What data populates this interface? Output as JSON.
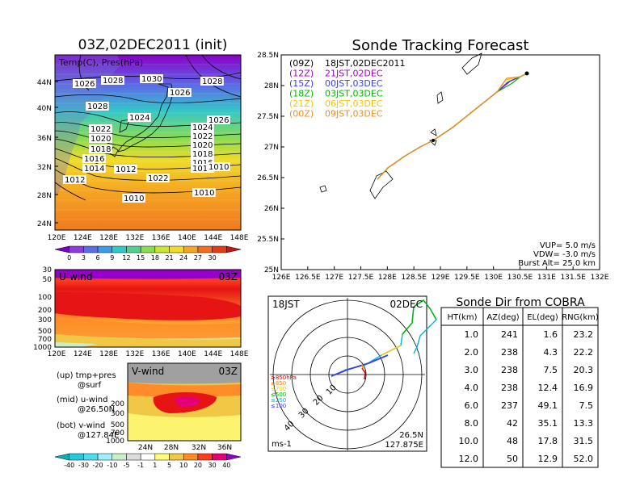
{
  "left_map": {
    "title": "03Z,02DEC2011 (init)",
    "overlay": "Temp(C), Pres(hPa)",
    "lat_ticks": [
      "44N",
      "40N",
      "36N",
      "32N",
      "28N",
      "24N"
    ],
    "lon_ticks": [
      "120E",
      "124E",
      "128E",
      "132E",
      "136E",
      "140E",
      "144E",
      "148E"
    ],
    "isobars": [
      "1026",
      "1028",
      "1030",
      "1028",
      "1026",
      "1028",
      "1024",
      "1026",
      "1022",
      "1020",
      "1018",
      "1016",
      "1014",
      "1012",
      "1024",
      "1022",
      "1020",
      "1018",
      "1016",
      "1014",
      "1012",
      "1022",
      "1010",
      "1010",
      "1010"
    ],
    "colorbar_labels": [
      "0",
      "3",
      "6",
      "9",
      "12",
      "15",
      "18",
      "21",
      "24",
      "27",
      "30"
    ],
    "colorbar_colors": [
      "#7a00c8",
      "#8c3cdc",
      "#5a6ee6",
      "#3c9be6",
      "#32c8c8",
      "#50d28c",
      "#8cdc50",
      "#c8e632",
      "#f0dc28",
      "#f5a523",
      "#f06e1e",
      "#e63c14",
      "#c81414"
    ]
  },
  "uwind": {
    "label": "U-wind",
    "time": "03Z",
    "y_ticks": [
      "30",
      "50",
      "100",
      "200",
      "300",
      "500",
      "700",
      "1000"
    ],
    "x_ticks": [
      "120E",
      "124E",
      "128E",
      "132E",
      "136E",
      "140E",
      "144E",
      "148E"
    ]
  },
  "vwind": {
    "label": "V-wind",
    "time": "03Z",
    "y_ticks": [
      "200",
      "300",
      "500",
      "700",
      "1000"
    ],
    "x_ticks": [
      "24N",
      "28N",
      "32N",
      "36N"
    ]
  },
  "legend_notes": [
    {
      "line1": "(up) tmp+pres",
      "line2": "@surf"
    },
    {
      "line1": "(mid) u-wind",
      "line2": "@26.50N"
    },
    {
      "line1": "(bot) v-wind",
      "line2": "@127.84E"
    }
  ],
  "wind_colorbar": {
    "labels": [
      "-40",
      "-30",
      "-20",
      "-10",
      "-5",
      "-1",
      "1",
      "5",
      "10",
      "20",
      "30",
      "40"
    ],
    "colors": [
      "#00b4b4",
      "#28c8dc",
      "#50dcf0",
      "#a0f0ff",
      "#c8f0c8",
      "#dcdcdc",
      "#ffffff",
      "#ffff78",
      "#f0c846",
      "#ff8c28",
      "#ff3c1e",
      "#e60078",
      "#9600c8"
    ]
  },
  "track_map": {
    "title": "Sonde Tracking Forecast",
    "lat_ticks": [
      "28.5N",
      "28N",
      "27.5N",
      "27N",
      "26.5N",
      "26N",
      "25.5N",
      "25N"
    ],
    "lon_ticks": [
      "126E",
      "126.5E",
      "127E",
      "127.5E",
      "128E",
      "128.5E",
      "129E",
      "129.5E",
      "130E",
      "130.5E",
      "131E",
      "131.5E",
      "132E"
    ],
    "launch_labels": [
      {
        "code": "(09Z)",
        "label": "18JST,02DEC2011",
        "color": "#000000"
      },
      {
        "code": "(12Z)",
        "label": "21JST,02DEC",
        "color": "#a000c8"
      },
      {
        "code": "(15Z)",
        "label": "00JST,03DEC",
        "color": "#3c3cf0"
      },
      {
        "code": "(18Z)",
        "label": "03JST,03DEC",
        "color": "#00b400"
      },
      {
        "code": "(21Z)",
        "label": "06JST,03DEC",
        "color": "#f0c800"
      },
      {
        "code": "(00Z)",
        "label": "09JST,03DEC",
        "color": "#f08c1e"
      }
    ],
    "params": [
      "VUP= 5.0 m/s",
      "VDW= -3.0 m/s",
      "Burst Alt= 25.0 km"
    ]
  },
  "polar": {
    "time_label": "18JST",
    "date_label": "02DEC",
    "ring_labels": [
      "10",
      "20",
      "30",
      "40"
    ],
    "pressure_legend": [
      {
        "label": "≥850hPa",
        "color": "#e60000"
      },
      {
        "label": "≤850",
        "color": "#f08c1e"
      },
      {
        "label": "≤700",
        "color": "#f0c800"
      },
      {
        "label": "≤500",
        "color": "#00b400"
      },
      {
        "label": "≤250",
        "color": "#00b4e6"
      },
      {
        "label": "≤100",
        "color": "#3c3cf0"
      }
    ],
    "units": "ms-1",
    "location_lat": "26.5N",
    "location_lon": "127.875E"
  },
  "cobra_table": {
    "title": "Sonde Dir from COBRA",
    "headers": [
      "HT(km)",
      "AZ(deg)",
      "EL(deg)",
      "RNG(km)"
    ],
    "rows": [
      [
        "1.0",
        "241",
        "1.6",
        "23.2"
      ],
      [
        "2.0",
        "238",
        "4.3",
        "22.2"
      ],
      [
        "3.0",
        "238",
        "7.5",
        "20.3"
      ],
      [
        "4.0",
        "238",
        "12.4",
        "16.9"
      ],
      [
        "6.0",
        "237",
        "49.1",
        "7.5"
      ],
      [
        "8.0",
        "42",
        "35.1",
        "13.3"
      ],
      [
        "10.0",
        "48",
        "17.8",
        "31.5"
      ],
      [
        "12.0",
        "50",
        "12.9",
        "52.0"
      ]
    ]
  }
}
